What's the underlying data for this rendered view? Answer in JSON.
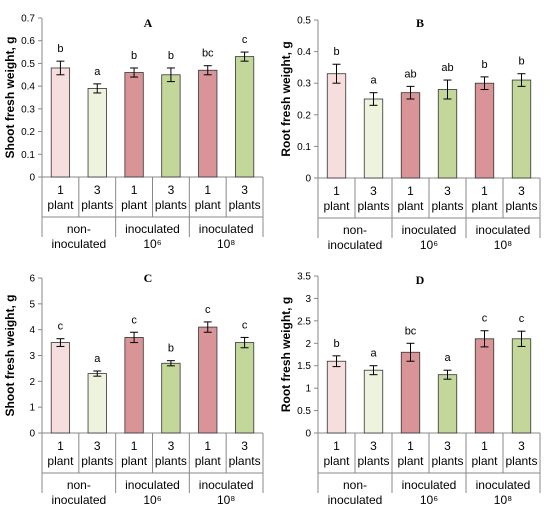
{
  "colors": {
    "light_pink": "#f6dede",
    "light_green": "#eef3dd",
    "pink": "#d89497",
    "green": "#c3d79b",
    "bar_stroke": "#333333",
    "axis": "#888888"
  },
  "chart_data": [
    {
      "type": "bar",
      "panel": "A",
      "ylabel": "Shoot fresh weight, g",
      "ylim": [
        0,
        0.7
      ],
      "yticks": [
        "0",
        "0.1",
        "0.2",
        "0.3",
        "0.4",
        "0.5",
        "0.6",
        "0.7"
      ],
      "categories": [
        [
          "1",
          "plant"
        ],
        [
          "3",
          "plants"
        ],
        [
          "1",
          "plant"
        ],
        [
          "3",
          "plants"
        ],
        [
          "1",
          "plant"
        ],
        [
          "3",
          "plants"
        ]
      ],
      "groups": [
        [
          "non-",
          "inoculated"
        ],
        [
          "inoculated",
          "10⁶"
        ],
        [
          "inoculated",
          "10⁸"
        ]
      ],
      "values": [
        0.48,
        0.39,
        0.46,
        0.45,
        0.47,
        0.53
      ],
      "errors": [
        0.03,
        0.02,
        0.02,
        0.03,
        0.02,
        0.02
      ],
      "significance": [
        "b",
        "a",
        "b",
        "b",
        "bc",
        "c"
      ]
    },
    {
      "type": "bar",
      "panel": "B",
      "ylabel": "Root fresh weight, g",
      "ylim": [
        0,
        0.5
      ],
      "yticks": [
        "0",
        "0.1",
        "0.2",
        "0.3",
        "0.4",
        "0.5"
      ],
      "categories": [
        [
          "1",
          "plant"
        ],
        [
          "3",
          "plants"
        ],
        [
          "1",
          "plant"
        ],
        [
          "3",
          "plants"
        ],
        [
          "1",
          "plant"
        ],
        [
          "3",
          "plants"
        ]
      ],
      "groups": [
        [
          "non-",
          "inoculated"
        ],
        [
          "inoculated",
          "10⁶"
        ],
        [
          "inoculated",
          "10⁸"
        ]
      ],
      "values": [
        0.33,
        0.25,
        0.27,
        0.28,
        0.3,
        0.31
      ],
      "errors": [
        0.03,
        0.02,
        0.02,
        0.03,
        0.02,
        0.02
      ],
      "significance": [
        "b",
        "a",
        "ab",
        "ab",
        "b",
        "b"
      ]
    },
    {
      "type": "bar",
      "panel": "C",
      "ylabel": "Shoot fresh weight, g",
      "ylim": [
        0,
        6
      ],
      "yticks": [
        "0",
        "1",
        "2",
        "3",
        "4",
        "5",
        "6"
      ],
      "categories": [
        [
          "1",
          "plant"
        ],
        [
          "3",
          "plants"
        ],
        [
          "1",
          "plant"
        ],
        [
          "3",
          "plants"
        ],
        [
          "1",
          "plant"
        ],
        [
          "3",
          "plants"
        ]
      ],
      "groups": [
        [
          "non-",
          "inoculated"
        ],
        [
          "inoculated",
          "10⁶"
        ],
        [
          "inoculated",
          "10⁸"
        ]
      ],
      "values": [
        3.5,
        2.3,
        3.7,
        2.7,
        4.1,
        3.5
      ],
      "errors": [
        0.15,
        0.1,
        0.2,
        0.1,
        0.2,
        0.2
      ],
      "significance": [
        "c",
        "a",
        "c",
        "b",
        "c",
        "c"
      ]
    },
    {
      "type": "bar",
      "panel": "D",
      "ylabel": "Root fresh weight, g",
      "ylim": [
        0,
        3.5
      ],
      "yticks": [
        "0",
        "0.5",
        "1",
        "1.5",
        "2",
        "2.5",
        "3",
        "3.5"
      ],
      "categories": [
        [
          "1",
          "plant"
        ],
        [
          "3",
          "plants"
        ],
        [
          "1",
          "plant"
        ],
        [
          "3",
          "plants"
        ],
        [
          "1",
          "plant"
        ],
        [
          "3",
          "plants"
        ]
      ],
      "groups": [
        [
          "non-",
          "inoculated"
        ],
        [
          "inoculated",
          "10⁶"
        ],
        [
          "inoculated",
          "10⁸"
        ]
      ],
      "values": [
        1.6,
        1.4,
        1.8,
        1.3,
        2.1,
        2.1
      ],
      "errors": [
        0.12,
        0.1,
        0.2,
        0.1,
        0.18,
        0.17
      ],
      "significance": [
        "b",
        "a",
        "bc",
        "a",
        "c",
        "c"
      ]
    }
  ]
}
